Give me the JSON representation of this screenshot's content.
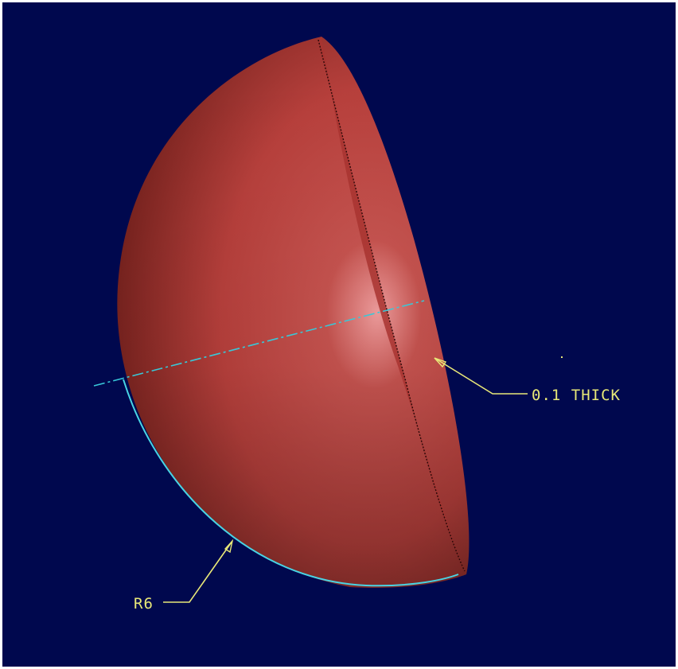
{
  "colors": {
    "background": "#00084e",
    "frame": "#ffffff",
    "shell_light": "#f4a0a0",
    "shell_mid": "#b8403c",
    "shell_dark": "#6a1c18",
    "rim_edge": "#2a0808",
    "centerline": "#38c8d8",
    "radius_arc": "#48d4e4",
    "leader": "#e8e878",
    "annotation_text": "#e8e878"
  },
  "annotations": {
    "thickness_label": "0.1 THICK",
    "radius_label": "R6"
  }
}
